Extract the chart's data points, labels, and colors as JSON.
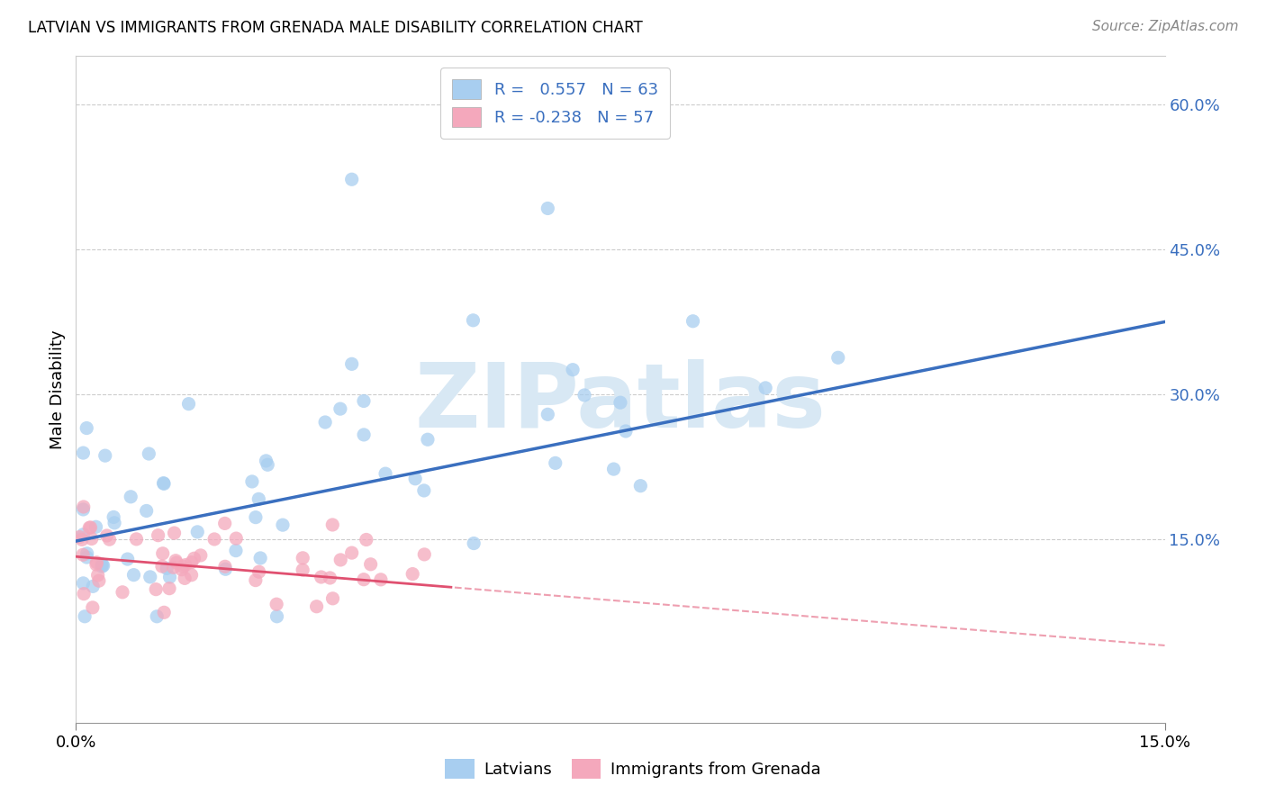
{
  "title": "LATVIAN VS IMMIGRANTS FROM GRENADA MALE DISABILITY CORRELATION CHART",
  "source": "Source: ZipAtlas.com",
  "ylabel": "Male Disability",
  "right_yticks": [
    "60.0%",
    "45.0%",
    "30.0%",
    "15.0%"
  ],
  "right_ytick_vals": [
    0.6,
    0.45,
    0.3,
    0.15
  ],
  "xmin": 0.0,
  "xmax": 0.15,
  "ymin": -0.04,
  "ymax": 0.65,
  "latvian_R": 0.557,
  "latvian_N": 63,
  "grenada_R": -0.238,
  "grenada_N": 57,
  "latvian_color": "#A8CEF0",
  "grenada_color": "#F4A8BC",
  "latvian_line_color": "#3A6FBF",
  "grenada_line_color": "#E05070",
  "watermark_color": "#D8E8F4",
  "watermark_text": "ZIPatlas",
  "background_color": "#FFFFFF",
  "grid_color": "#CCCCCC",
  "legend_text_color": "#3A6FBF",
  "right_tick_color": "#3A6FBF",
  "title_fontsize": 12,
  "source_fontsize": 11,
  "tick_fontsize": 13,
  "legend_fontsize": 13,
  "scatter_size": 120,
  "scatter_alpha": 0.75,
  "lv_line_y0": 0.148,
  "lv_line_y1": 0.375,
  "gr_line_y0": 0.132,
  "gr_line_y1": 0.04
}
